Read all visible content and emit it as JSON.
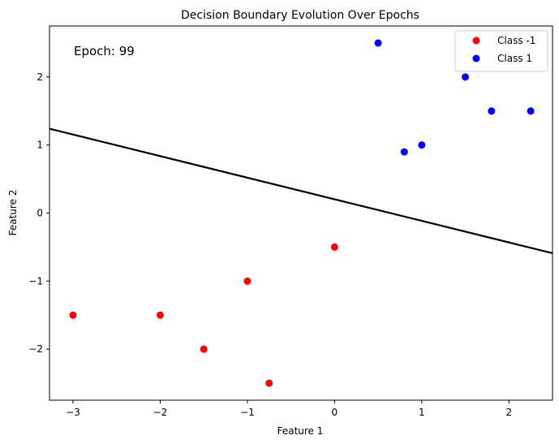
{
  "chart_data": {
    "type": "scatter",
    "title": "Decision Boundary Evolution Over Epochs",
    "xlabel": "Feature 1",
    "ylabel": "Feature 2",
    "xlim": [
      -3.27,
      2.5
    ],
    "ylim": [
      -2.75,
      2.75
    ],
    "xticks": [
      -3,
      -2,
      -1,
      0,
      1,
      2
    ],
    "yticks": [
      -2,
      -1,
      0,
      1,
      2
    ],
    "xtick_labels": [
      "−3",
      "−2",
      "−1",
      "0",
      "1",
      "2"
    ],
    "ytick_labels": [
      "−2",
      "−1",
      "0",
      "1",
      "2"
    ],
    "grid": false,
    "legend_position": "top-right",
    "annotation": "Epoch: 99",
    "series": [
      {
        "name": "Class -1",
        "color": "#ff0000",
        "points": [
          [
            -3,
            -1.5
          ],
          [
            -2,
            -1.5
          ],
          [
            -1.5,
            -2
          ],
          [
            -1,
            -1
          ],
          [
            -0.75,
            -2.5
          ],
          [
            0,
            -0.5
          ]
        ]
      },
      {
        "name": "Class 1",
        "color": "#0000ff",
        "points": [
          [
            0.5,
            2.5
          ],
          [
            0.8,
            0.9
          ],
          [
            1,
            1
          ],
          [
            1.5,
            2
          ],
          [
            1.8,
            1.5
          ],
          [
            2.25,
            1.5
          ]
        ]
      }
    ],
    "boundary_line": {
      "color": "#000000",
      "points": [
        [
          -3.27,
          1.24
        ],
        [
          2.5,
          -0.59
        ]
      ]
    }
  }
}
